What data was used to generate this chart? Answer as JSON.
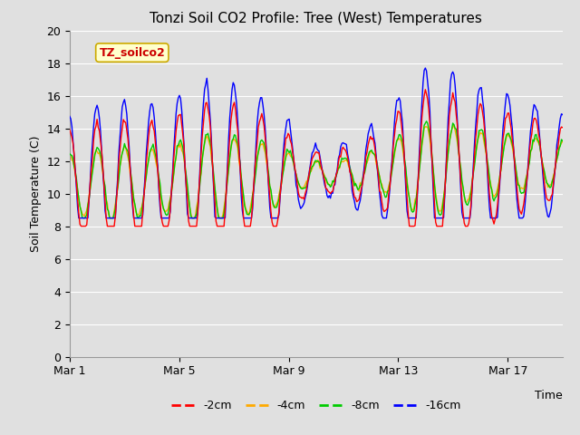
{
  "title": "Tonzi Soil CO2 Profile: Tree (West) Temperatures",
  "xlabel": "Time",
  "ylabel": "Soil Temperature (C)",
  "ylim": [
    0,
    20
  ],
  "yticks": [
    0,
    2,
    4,
    6,
    8,
    10,
    12,
    14,
    16,
    18,
    20
  ],
  "xtick_labels": [
    "Mar 1",
    "Mar 5",
    "Mar 9",
    "Mar 13",
    "Mar 17"
  ],
  "xtick_positions": [
    0,
    4,
    8,
    12,
    16
  ],
  "annotation_text": "TZ_soilco2",
  "annotation_bg": "#ffffcc",
  "annotation_border": "#ccaa00",
  "annotation_text_color": "#cc0000",
  "bg_color": "#e0e0e0",
  "plot_bg_color": "#e0e0e0",
  "colors": {
    "-2cm": "#ff0000",
    "-4cm": "#ffaa00",
    "-8cm": "#00cc00",
    "-16cm": "#0000ff"
  },
  "legend_labels": [
    "-2cm",
    "-4cm",
    "-8cm",
    "-16cm"
  ],
  "days": 18,
  "figsize": [
    6.4,
    4.8
  ],
  "dpi": 100
}
